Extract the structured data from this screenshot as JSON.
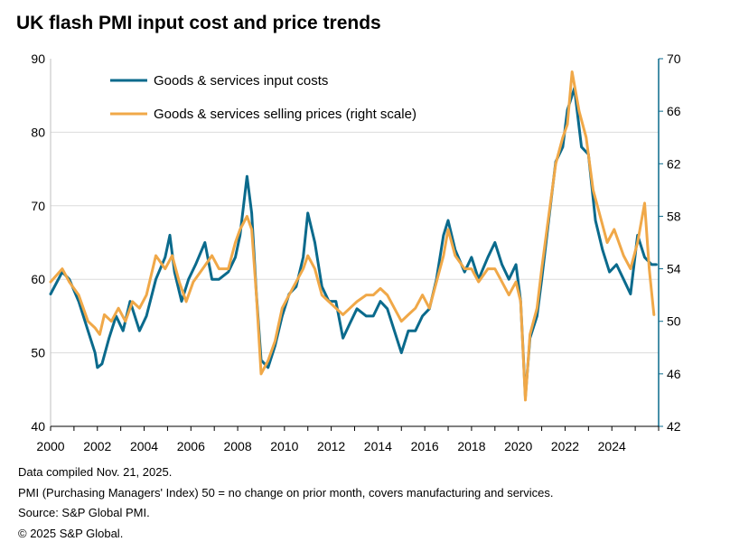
{
  "title": "UK flash PMI input cost and price trends",
  "footnotes": [
    "Data compiled Nov. 21, 2025.",
    "PMI (Purchasing Managers' Index) 50 = no change on prior month, covers manufacturing and services.",
    "Source: S&P Global PMI.",
    "© 2025 S&P Global."
  ],
  "chart_data": {
    "type": "line",
    "title": "UK flash PMI input cost and price trends",
    "x_ticks": [
      "2000",
      "2002",
      "2004",
      "2006",
      "2008",
      "2010",
      "2012",
      "2014",
      "2016",
      "2018",
      "2020",
      "2022",
      "2024"
    ],
    "y_left": {
      "range": [
        40,
        90
      ],
      "ticks": [
        "40",
        "50",
        "60",
        "70",
        "80",
        "90"
      ]
    },
    "y_right": {
      "range": [
        42,
        70
      ],
      "ticks": [
        "42",
        "46",
        "50",
        "54",
        "58",
        "62",
        "66",
        "70"
      ]
    },
    "grid": true,
    "legend_position": "top-left",
    "series": [
      {
        "name": "Goods & services input costs",
        "axis": "left",
        "color": "#0a6a8c",
        "points": [
          [
            2000.0,
            58
          ],
          [
            2000.5,
            61
          ],
          [
            2000.8,
            60
          ],
          [
            2001.2,
            57
          ],
          [
            2001.6,
            53
          ],
          [
            2001.9,
            50
          ],
          [
            2002.0,
            48
          ],
          [
            2002.2,
            48.5
          ],
          [
            2002.5,
            52
          ],
          [
            2002.8,
            55
          ],
          [
            2003.1,
            53
          ],
          [
            2003.4,
            57
          ],
          [
            2003.8,
            53
          ],
          [
            2004.1,
            55
          ],
          [
            2004.5,
            60
          ],
          [
            2004.9,
            63
          ],
          [
            2005.1,
            66
          ],
          [
            2005.3,
            61
          ],
          [
            2005.6,
            57
          ],
          [
            2005.9,
            60
          ],
          [
            2006.2,
            62
          ],
          [
            2006.6,
            65
          ],
          [
            2006.9,
            60
          ],
          [
            2007.2,
            60
          ],
          [
            2007.6,
            61
          ],
          [
            2007.9,
            63
          ],
          [
            2008.1,
            66
          ],
          [
            2008.4,
            74
          ],
          [
            2008.6,
            69
          ],
          [
            2008.8,
            58
          ],
          [
            2009.0,
            49
          ],
          [
            2009.3,
            48
          ],
          [
            2009.6,
            51
          ],
          [
            2009.9,
            55
          ],
          [
            2010.2,
            58
          ],
          [
            2010.5,
            59
          ],
          [
            2010.8,
            63
          ],
          [
            2011.0,
            69
          ],
          [
            2011.3,
            65
          ],
          [
            2011.6,
            59
          ],
          [
            2011.9,
            57
          ],
          [
            2012.2,
            57
          ],
          [
            2012.5,
            52
          ],
          [
            2012.8,
            54
          ],
          [
            2013.1,
            56
          ],
          [
            2013.5,
            55
          ],
          [
            2013.8,
            55
          ],
          [
            2014.1,
            57
          ],
          [
            2014.4,
            56
          ],
          [
            2014.7,
            53
          ],
          [
            2015.0,
            50
          ],
          [
            2015.3,
            53
          ],
          [
            2015.6,
            53
          ],
          [
            2015.9,
            55
          ],
          [
            2016.2,
            56
          ],
          [
            2016.5,
            60
          ],
          [
            2016.8,
            66
          ],
          [
            2017.0,
            68
          ],
          [
            2017.3,
            64
          ],
          [
            2017.7,
            61
          ],
          [
            2018.0,
            63
          ],
          [
            2018.3,
            60
          ],
          [
            2018.7,
            63
          ],
          [
            2019.0,
            65
          ],
          [
            2019.3,
            62
          ],
          [
            2019.6,
            60
          ],
          [
            2019.9,
            62
          ],
          [
            2020.1,
            57
          ],
          [
            2020.3,
            44
          ],
          [
            2020.5,
            52
          ],
          [
            2020.8,
            55
          ],
          [
            2021.0,
            60
          ],
          [
            2021.3,
            68
          ],
          [
            2021.6,
            76
          ],
          [
            2021.9,
            78
          ],
          [
            2022.1,
            83
          ],
          [
            2022.4,
            86
          ],
          [
            2022.7,
            78
          ],
          [
            2023.0,
            77
          ],
          [
            2023.3,
            68
          ],
          [
            2023.6,
            64
          ],
          [
            2023.9,
            61
          ],
          [
            2024.2,
            62
          ],
          [
            2024.5,
            60
          ],
          [
            2024.8,
            58
          ],
          [
            2025.1,
            66
          ],
          [
            2025.4,
            63
          ],
          [
            2025.7,
            62
          ],
          [
            2025.9,
            62
          ]
        ]
      },
      {
        "name": "Goods & services selling prices (right scale)",
        "axis": "right",
        "color": "#f0a848",
        "points": [
          [
            2000.0,
            53
          ],
          [
            2000.5,
            54
          ],
          [
            2000.8,
            53
          ],
          [
            2001.2,
            52
          ],
          [
            2001.6,
            50
          ],
          [
            2001.9,
            49.5
          ],
          [
            2002.1,
            49
          ],
          [
            2002.3,
            50.5
          ],
          [
            2002.6,
            50
          ],
          [
            2002.9,
            51
          ],
          [
            2003.2,
            50
          ],
          [
            2003.5,
            51.5
          ],
          [
            2003.8,
            51
          ],
          [
            2004.1,
            52
          ],
          [
            2004.5,
            55
          ],
          [
            2004.9,
            54
          ],
          [
            2005.2,
            55
          ],
          [
            2005.5,
            53
          ],
          [
            2005.8,
            51.5
          ],
          [
            2006.1,
            53
          ],
          [
            2006.5,
            54
          ],
          [
            2006.9,
            55
          ],
          [
            2007.2,
            54
          ],
          [
            2007.6,
            54
          ],
          [
            2007.9,
            56
          ],
          [
            2008.1,
            57
          ],
          [
            2008.4,
            58
          ],
          [
            2008.6,
            57
          ],
          [
            2008.8,
            52
          ],
          [
            2009.0,
            46
          ],
          [
            2009.3,
            47
          ],
          [
            2009.6,
            48.5
          ],
          [
            2009.9,
            51
          ],
          [
            2010.2,
            52
          ],
          [
            2010.5,
            53
          ],
          [
            2010.8,
            54
          ],
          [
            2011.0,
            55
          ],
          [
            2011.3,
            54
          ],
          [
            2011.6,
            52
          ],
          [
            2011.9,
            51.5
          ],
          [
            2012.2,
            51
          ],
          [
            2012.5,
            50.5
          ],
          [
            2012.8,
            51
          ],
          [
            2013.1,
            51.5
          ],
          [
            2013.5,
            52
          ],
          [
            2013.8,
            52
          ],
          [
            2014.1,
            52.5
          ],
          [
            2014.4,
            52
          ],
          [
            2014.7,
            51
          ],
          [
            2015.0,
            50
          ],
          [
            2015.3,
            50.5
          ],
          [
            2015.6,
            51
          ],
          [
            2015.9,
            52
          ],
          [
            2016.2,
            51
          ],
          [
            2016.5,
            53
          ],
          [
            2016.8,
            55
          ],
          [
            2017.0,
            57
          ],
          [
            2017.3,
            55
          ],
          [
            2017.7,
            54
          ],
          [
            2018.0,
            54
          ],
          [
            2018.3,
            53
          ],
          [
            2018.7,
            54
          ],
          [
            2019.0,
            54
          ],
          [
            2019.3,
            53
          ],
          [
            2019.6,
            52
          ],
          [
            2019.9,
            53
          ],
          [
            2020.1,
            51.5
          ],
          [
            2020.3,
            44
          ],
          [
            2020.5,
            49
          ],
          [
            2020.8,
            51
          ],
          [
            2021.0,
            54
          ],
          [
            2021.3,
            58
          ],
          [
            2021.6,
            62
          ],
          [
            2021.9,
            64
          ],
          [
            2022.1,
            65
          ],
          [
            2022.3,
            69
          ],
          [
            2022.6,
            66
          ],
          [
            2022.9,
            64
          ],
          [
            2023.2,
            60
          ],
          [
            2023.5,
            58
          ],
          [
            2023.8,
            56
          ],
          [
            2024.1,
            57
          ],
          [
            2024.5,
            55
          ],
          [
            2024.8,
            54
          ],
          [
            2025.1,
            56
          ],
          [
            2025.4,
            59
          ],
          [
            2025.6,
            54
          ],
          [
            2025.8,
            50.5
          ]
        ]
      }
    ]
  }
}
